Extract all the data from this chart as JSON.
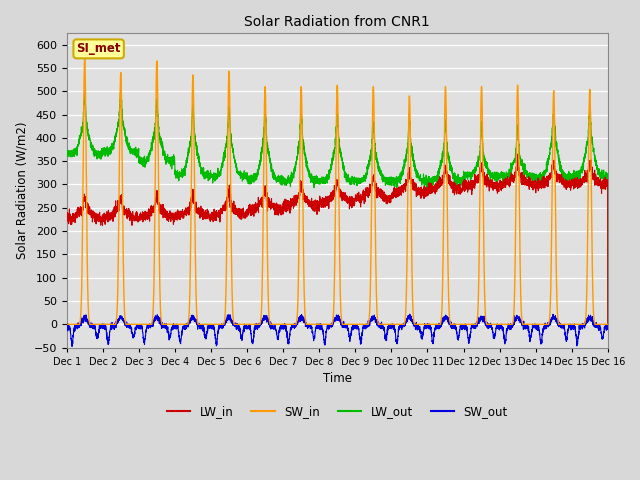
{
  "title": "Solar Radiation from CNR1",
  "xlabel": "Time",
  "ylabel": "Solar Radiation (W/m2)",
  "ylim": [
    -50,
    625
  ],
  "n_days": 15,
  "colors": {
    "LW_in": "#cc0000",
    "SW_in": "#ff9900",
    "LW_out": "#00bb00",
    "SW_out": "#0000dd"
  },
  "background_color": "#e0e0e0",
  "grid_color": "#ffffff",
  "legend_label": "SI_met",
  "legend_bg": "#ffff99",
  "legend_border": "#ccaa00",
  "sw_peaks": [
    570,
    540,
    565,
    535,
    543,
    510,
    510,
    513,
    510,
    490,
    510,
    510,
    513,
    501,
    504
  ],
  "lw_in_base": [
    228,
    228,
    230,
    232,
    235,
    245,
    250,
    255,
    258,
    265,
    270,
    272,
    272,
    268,
    265
  ],
  "lw_out_base": [
    365,
    370,
    350,
    320,
    318,
    310,
    308,
    308,
    308,
    308,
    308,
    318,
    318,
    315,
    318
  ],
  "lw_out_peak": [
    490,
    500,
    478,
    465,
    462,
    453,
    452,
    450,
    433,
    438,
    433,
    423,
    423,
    460,
    462
  ]
}
